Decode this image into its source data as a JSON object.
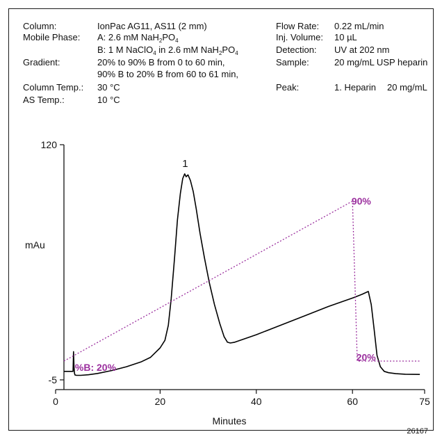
{
  "conditions": {
    "left": [
      {
        "label": "Column:",
        "value": "IonPac AG11, AS11 (2 mm)"
      },
      {
        "label": "Mobile Phase:",
        "value": "A: 2.6 mM NaH",
        "sub1": "2",
        "mid": "PO",
        "sub2": "4"
      },
      {
        "label": "",
        "value": "B: 1 M NaClO",
        "sub1": "4",
        "mid": " in 2.6 mM NaH",
        "sub2": "2",
        "mid2": "PO",
        "sub3": "4"
      },
      {
        "label": "Gradient:",
        "value": "20% to 90% B from 0 to 60 min,"
      },
      {
        "label": "",
        "value": "90% B to 20% B from 60 to 61 min,"
      },
      {
        "label": "Column Temp.:",
        "value": "30 °C"
      },
      {
        "label": "AS Temp.:",
        "value": "10 °C"
      }
    ],
    "right": [
      {
        "label": "Flow Rate:",
        "value": "0.22 mL/min"
      },
      {
        "label": "Inj. Volume:",
        "value": "10 µL"
      },
      {
        "label": "Detection:",
        "value": "UV at 202 nm"
      },
      {
        "label": "Sample:",
        "value": "20 mg/mL USP heparin"
      },
      {
        "label": "Peak:",
        "value": "1. Heparin",
        "value2": "20 mg/mL"
      }
    ]
  },
  "chart_data": {
    "type": "line",
    "xlabel": "Minutes",
    "ylabel": "mAu",
    "xlim": [
      0,
      75
    ],
    "ylim": [
      -5,
      120
    ],
    "x_ticks": [
      0,
      20,
      40,
      60,
      75
    ],
    "y_ticks": [
      -5,
      120
    ],
    "figure_id": "26167",
    "peak_labels": [
      {
        "text": "1",
        "x": 25.2,
        "y": 106
      }
    ],
    "series": [
      {
        "name": "",
        "color": "#000000",
        "x": [
          0,
          1.5,
          1.9,
          2.0,
          2.1,
          2.2,
          2.3,
          2.6,
          3.5,
          5,
          7,
          10,
          13,
          16,
          18,
          20,
          21,
          21.7,
          22.3,
          23,
          23.6,
          24.2,
          24.7,
          25.1,
          25.4,
          25.8,
          26.3,
          26.9,
          27.5,
          28.3,
          29.2,
          30.2,
          31.3,
          32.4,
          33.3,
          34.0,
          34.6,
          35.5,
          40,
          45,
          50,
          55,
          60,
          62,
          63.3,
          63.9,
          64.5,
          65.1,
          65.8,
          66.6,
          67.5,
          69,
          71,
          74
        ],
        "y": [
          -0.5,
          -0.5,
          -0.5,
          10,
          2,
          -1.5,
          -2.4,
          -2.6,
          -2.6,
          -2.3,
          -1.6,
          0,
          2,
          4.5,
          7,
          12,
          16,
          24,
          38,
          60,
          80,
          94,
          102,
          104.5,
          103,
          104,
          101,
          95,
          86,
          73,
          60,
          47,
          35,
          25,
          18,
          15,
          14.6,
          15,
          19,
          24,
          29,
          34,
          38.5,
          40.5,
          42,
          35,
          22,
          8,
          2,
          -0.5,
          -1.2,
          -1.7,
          -2,
          -2.1
        ]
      },
      {
        "name": "%B",
        "color": "#9b2f9e",
        "dashed": true,
        "x": [
          0,
          60,
          61,
          74
        ],
        "y": [
          5,
          90,
          5,
          5
        ]
      }
    ],
    "annotations": [
      {
        "text": "%B: 20%",
        "x": 2.3,
        "y": 1.6,
        "color": "#9b2f9e"
      },
      {
        "text": "90%",
        "x": 59.8,
        "y": 90,
        "color": "#9b2f9e"
      },
      {
        "text": "20%",
        "x": 60.8,
        "y": 7,
        "color": "#9b2f9e"
      }
    ]
  }
}
